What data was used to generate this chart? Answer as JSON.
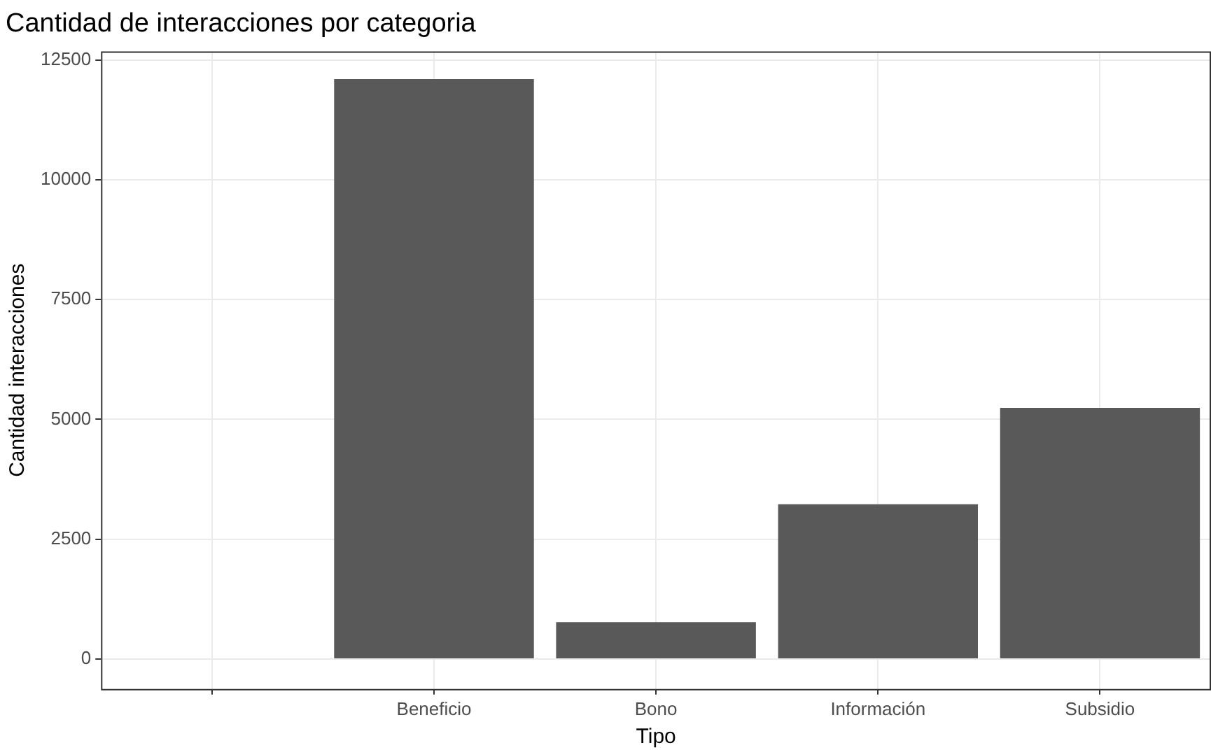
{
  "chart_data": {
    "type": "bar",
    "title": "Cantidad de interacciones por categoria",
    "xlabel": "Tipo",
    "ylabel": "Cantidad interacciones",
    "categories": [
      null,
      "Beneficio",
      "Bono",
      "Información",
      "Subsidio"
    ],
    "values": [
      null,
      12100,
      770,
      3230,
      5240
    ],
    "color": "#595959",
    "ylim": [
      -625,
      12675
    ],
    "yticks": [
      0,
      2500,
      5000,
      7500,
      10000,
      12500
    ],
    "grid": true,
    "legend": false
  }
}
